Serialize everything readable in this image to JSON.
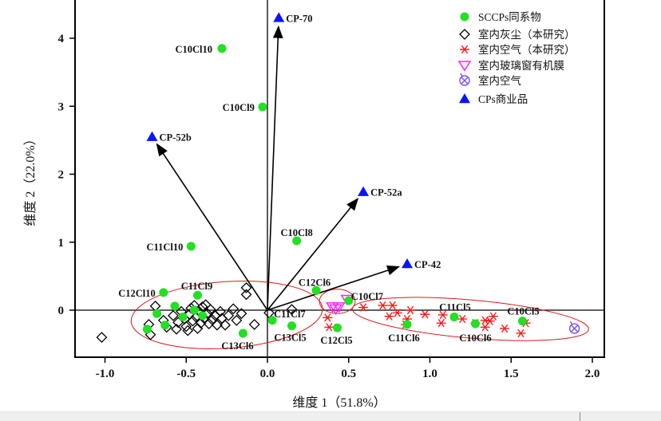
{
  "colors": {
    "sccp": "#22e022",
    "dust": "#000000",
    "air": "#ff1a1a",
    "glass": "#ff22ff",
    "indoor_air": "#7a4cff",
    "cp": "#0a14ff",
    "ellipse": "#e01818",
    "axis": "#000000"
  },
  "chart_data": {
    "type": "scatter",
    "subtype": "biplot",
    "xlabel": "维度 1（51.8%）",
    "ylabel": "维度 2（22.0%）",
    "xlim": [
      -1.18,
      2.07
    ],
    "ylim": [
      -0.7,
      4.56
    ],
    "xticks": [
      -1.0,
      -0.5,
      0.0,
      0.5,
      1.0,
      1.5,
      2.0
    ],
    "xtick_labels": [
      "-1.0",
      "-0.5",
      "0.0",
      "0.5",
      "1.0",
      "1.5",
      "2.0"
    ],
    "yticks": [
      0,
      1,
      2,
      3,
      4
    ],
    "ytick_labels": [
      "0",
      "1",
      "2",
      "3",
      "4"
    ],
    "legend_position": "top-right",
    "legend": [
      {
        "key": "sccp",
        "label": "SCCPs同系物",
        "marker": "circle"
      },
      {
        "key": "dust",
        "label": "室内灰尘（本研究）",
        "marker": "diamond"
      },
      {
        "key": "air",
        "label": "室内空气（本研究）",
        "marker": "star"
      },
      {
        "key": "glass",
        "label": "室内玻璃窗有机膜",
        "marker": "triangle-down"
      },
      {
        "key": "indoor_air",
        "label": "室内空气",
        "marker": "circle-x"
      },
      {
        "key": "cp",
        "label": "CPs商业品",
        "marker": "triangle-up"
      }
    ],
    "sccp_homologues": [
      {
        "name": "C10Cl10",
        "x": -0.28,
        "y": 3.85
      },
      {
        "name": "C10Cl9",
        "x": -0.03,
        "y": 2.99
      },
      {
        "name": "C10Cl8",
        "x": 0.18,
        "y": 1.02
      },
      {
        "name": "C11Cl10",
        "x": -0.47,
        "y": 0.94
      },
      {
        "name": "C12Cl10",
        "x": -0.64,
        "y": 0.26
      },
      {
        "name": "C11Cl9",
        "x": -0.43,
        "y": 0.22
      },
      {
        "name": "C12Cl6",
        "x": 0.3,
        "y": 0.29
      },
      {
        "name": "C10Cl7",
        "x": 0.5,
        "y": 0.14
      },
      {
        "name": "C11Cl7",
        "x": 0.03,
        "y": -0.15
      },
      {
        "name": "C13Cl5",
        "x": 0.15,
        "y": -0.23
      },
      {
        "name": "C12Cl5",
        "x": 0.43,
        "y": -0.26
      },
      {
        "name": "C13Cl6",
        "x": -0.15,
        "y": -0.34
      },
      {
        "name": "C11Cl5",
        "x": 1.15,
        "y": -0.1
      },
      {
        "name": "C11Cl6",
        "x": 0.86,
        "y": -0.21
      },
      {
        "name": "C10Cl6",
        "x": 1.28,
        "y": -0.2
      },
      {
        "name": "C10Cl5",
        "x": 1.57,
        "y": -0.16
      },
      {
        "name": "",
        "x": -0.57,
        "y": 0.06
      },
      {
        "name": "",
        "x": -0.52,
        "y": -0.1
      },
      {
        "name": "",
        "x": -0.68,
        "y": -0.05
      },
      {
        "name": "",
        "x": -0.74,
        "y": -0.28
      },
      {
        "name": "",
        "x": -0.63,
        "y": -0.22
      },
      {
        "name": "",
        "x": -0.45,
        "y": 0.0
      },
      {
        "name": "",
        "x": -0.4,
        "y": -0.08
      }
    ],
    "cp_products": [
      {
        "name": "CP-70",
        "x": 0.07,
        "y": 4.3
      },
      {
        "name": "CP-52b",
        "x": -0.71,
        "y": 2.55
      },
      {
        "name": "CP-52a",
        "x": 0.59,
        "y": 1.74
      },
      {
        "name": "CP-42",
        "x": 0.86,
        "y": 0.68
      }
    ],
    "indoor_dust": [
      [
        -1.02,
        -0.4
      ],
      [
        -0.69,
        0.06
      ],
      [
        -0.72,
        -0.36
      ],
      [
        -0.73,
        -0.21
      ],
      [
        -0.64,
        -0.15
      ],
      [
        -0.62,
        -0.25
      ],
      [
        -0.21,
        0.02
      ],
      [
        -0.26,
        -0.22
      ],
      [
        -0.16,
        -0.05
      ],
      [
        -0.08,
        -0.21
      ],
      [
        -0.13,
        0.33
      ],
      [
        -0.13,
        0.23
      ],
      [
        0.01,
        -0.04
      ],
      [
        0.15,
        0.01
      ],
      [
        -0.58,
        -0.08
      ],
      [
        -0.55,
        -0.18
      ],
      [
        -0.53,
        -0.02
      ],
      [
        -0.51,
        -0.13
      ],
      [
        -0.5,
        -0.24
      ],
      [
        -0.48,
        -0.06
      ],
      [
        -0.47,
        0.03
      ],
      [
        -0.46,
        -0.16
      ],
      [
        -0.44,
        -0.1
      ],
      [
        -0.43,
        -0.27
      ],
      [
        -0.42,
        -0.02
      ],
      [
        -0.41,
        -0.19
      ],
      [
        -0.4,
        0.05
      ],
      [
        -0.39,
        -0.12
      ],
      [
        -0.37,
        -0.05
      ],
      [
        -0.36,
        -0.2
      ],
      [
        -0.35,
        0.01
      ],
      [
        -0.34,
        -0.14
      ],
      [
        -0.32,
        -0.08
      ],
      [
        -0.31,
        -0.22
      ],
      [
        -0.29,
        -0.02
      ],
      [
        -0.28,
        -0.12
      ],
      [
        -0.49,
        -0.3
      ],
      [
        -0.45,
        0.07
      ],
      [
        -0.38,
        0.08
      ],
      [
        -0.56,
        -0.28
      ],
      [
        -0.24,
        -0.08
      ],
      [
        -0.19,
        -0.15
      ]
    ],
    "indoor_air_this_study": [
      [
        0.37,
        -0.11
      ],
      [
        0.38,
        -0.25
      ],
      [
        0.59,
        0.04
      ],
      [
        0.71,
        0.07
      ],
      [
        0.77,
        0.07
      ],
      [
        0.75,
        -0.09
      ],
      [
        0.8,
        -0.04
      ],
      [
        0.88,
        0.0
      ],
      [
        0.86,
        -0.13
      ],
      [
        0.85,
        -0.21
      ],
      [
        0.97,
        -0.06
      ],
      [
        1.08,
        -0.07
      ],
      [
        1.07,
        -0.19
      ],
      [
        1.2,
        -0.13
      ],
      [
        1.28,
        -0.19
      ],
      [
        1.34,
        -0.15
      ],
      [
        1.34,
        -0.25
      ],
      [
        1.37,
        -0.16
      ],
      [
        1.39,
        -0.09
      ],
      [
        1.46,
        -0.27
      ],
      [
        1.56,
        -0.34
      ],
      [
        1.59,
        -0.19
      ]
    ],
    "window_film": [
      [
        0.42,
        0.02
      ],
      [
        0.44,
        0.05
      ],
      [
        0.4,
        0.05
      ],
      [
        0.49,
        0.16
      ]
    ],
    "indoor_air_literature": [
      [
        1.89,
        -0.27
      ]
    ],
    "ellipses": [
      {
        "group": "indoor_dust",
        "cx": -0.25,
        "cy": -0.07,
        "rx": 0.59,
        "ry": 0.49
      },
      {
        "group": "window_film",
        "cx": 0.43,
        "cy": 0.13,
        "rx": 0.11,
        "ry": 0.18
      },
      {
        "group": "indoor_air",
        "cx": 1.25,
        "cy": -0.13,
        "rx": 0.73,
        "ry": 0.28
      }
    ]
  }
}
